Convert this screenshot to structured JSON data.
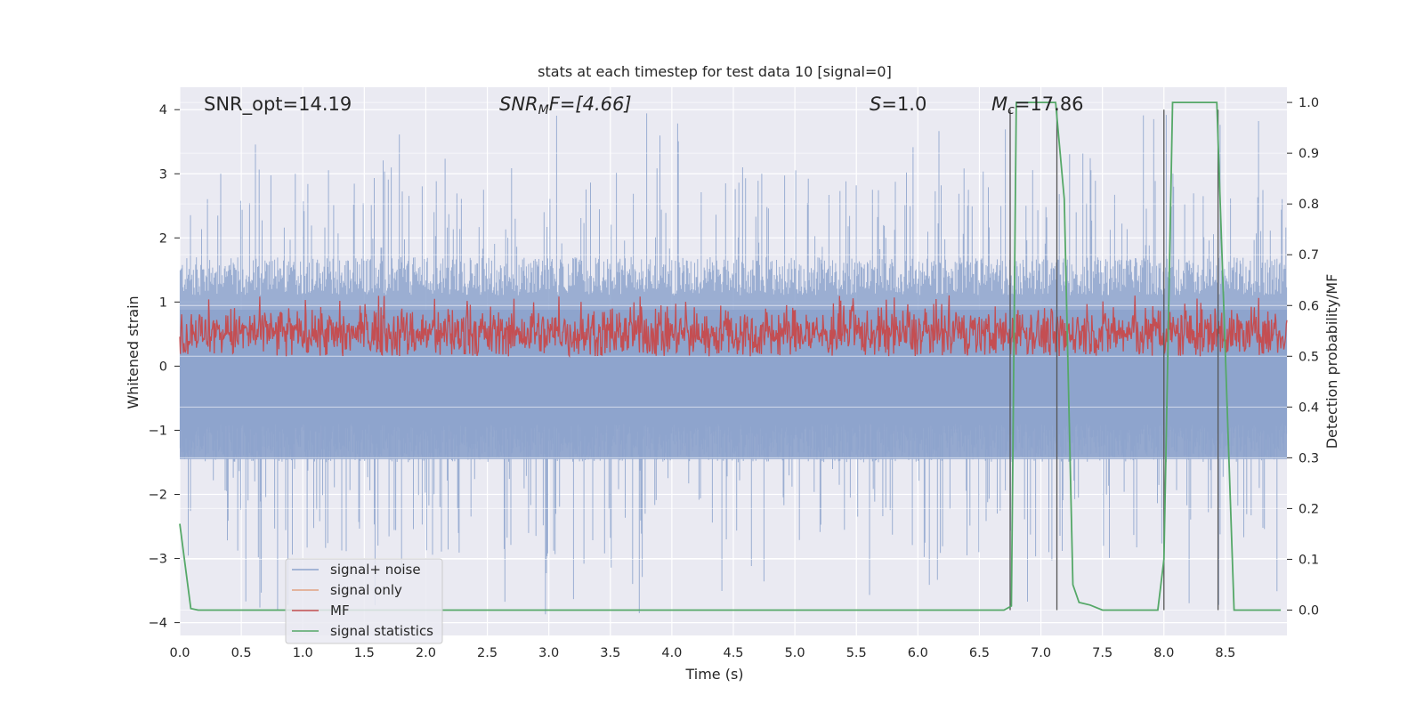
{
  "chart_data": {
    "type": "line",
    "title": "stats at each timestep for test data 10 [signal=0]",
    "xlabel": "Time (s)",
    "ylabel": "Whitened strain",
    "y2label": "Detection probability/MF",
    "xlim": [
      0.0,
      9.0
    ],
    "ylim": [
      -4.2,
      4.35
    ],
    "y2lim": [
      -0.05,
      1.03
    ],
    "x_ticks": [
      "0.0",
      "0.5",
      "1.0",
      "1.5",
      "2.0",
      "2.5",
      "3.0",
      "3.5",
      "4.0",
      "4.5",
      "5.0",
      "5.5",
      "6.0",
      "6.5",
      "7.0",
      "7.5",
      "8.0",
      "8.5"
    ],
    "y_ticks": [
      "4",
      "3",
      "2",
      "1",
      "0",
      "−1",
      "−2",
      "−3",
      "−4"
    ],
    "y2_ticks": [
      "1.0",
      "0.9",
      "0.8",
      "0.7",
      "0.6",
      "0.5",
      "0.4",
      "0.3",
      "0.2",
      "0.1",
      "0.0"
    ],
    "grid": true,
    "legend_position": "lower-left",
    "colors": {
      "background": "#eaeaf2",
      "grid": "#ffffff",
      "noise": "#8da3cc",
      "signal_only": "#dd8452",
      "mf": "#c44e52",
      "stats": "#55a868",
      "vlines": "#555555"
    },
    "annotations": [
      {
        "id": "snr_opt",
        "text": "SNR_opt=14.19",
        "italic": false
      },
      {
        "id": "snr_mf",
        "base": "SNR",
        "sub": "M",
        "rest": "F=[4.66]",
        "italic": true
      },
      {
        "id": "s_val",
        "base": "S",
        "rest": "=1.0",
        "italic": true
      },
      {
        "id": "mc_val",
        "base": "M",
        "sub": "c",
        "rest": "=17.86",
        "italic": true
      }
    ],
    "series": [
      {
        "name": "signal+ noise",
        "axis": "left",
        "description_stats": {
          "upper_envelope_typical": 1.7,
          "upper_peak": 4.0,
          "lower_envelope_typical": -1.5,
          "lower_peak": -3.9
        }
      },
      {
        "name": "signal only",
        "axis": "left",
        "values": []
      },
      {
        "name": "MF",
        "axis": "right",
        "range_typical": [
          0.5,
          0.6
        ],
        "peak": 0.62
      },
      {
        "name": "signal statistics",
        "axis": "right",
        "x": [
          0.0,
          0.09,
          0.15,
          1.0,
          2.0,
          3.0,
          4.0,
          5.0,
          6.0,
          6.7,
          6.76,
          6.8,
          7.12,
          7.19,
          7.26,
          7.31,
          7.4,
          7.5,
          7.95,
          8.0,
          8.07,
          8.43,
          8.5,
          8.57,
          8.65,
          8.95
        ],
        "values": [
          0.17,
          0.003,
          0.0,
          0.0,
          0.0,
          0.0,
          0.0,
          0.0,
          0.0,
          0.0,
          0.008,
          1.0,
          1.0,
          0.81,
          0.05,
          0.015,
          0.01,
          0.0,
          0.0,
          0.1,
          1.0,
          1.0,
          0.5,
          0.0,
          0.0,
          0.0
        ]
      }
    ],
    "vertical_lines": [
      6.75,
      7.13,
      8.0,
      8.44
    ]
  }
}
